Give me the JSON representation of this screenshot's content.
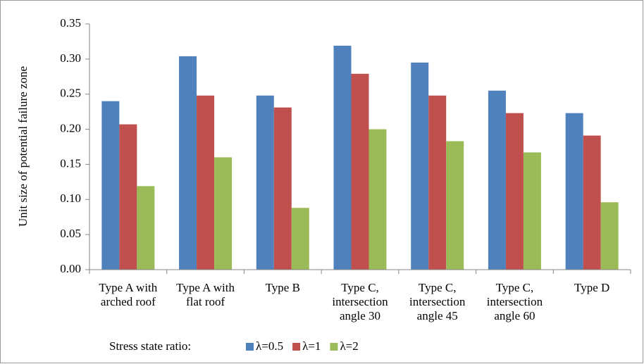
{
  "chart_data": {
    "type": "bar",
    "y_label": "Unit size of potential failure zone",
    "categories": [
      [
        "Type A with",
        "arched roof"
      ],
      [
        "Type A with",
        "flat roof"
      ],
      [
        "Type B"
      ],
      [
        "Type C,",
        "intersection",
        "angle 30"
      ],
      [
        "Type C,",
        "intersection",
        "angle 45"
      ],
      [
        "Type C,",
        "intersection",
        "angle 60"
      ],
      [
        "Type D"
      ]
    ],
    "series": [
      {
        "name": "λ=0.5",
        "color": "#4f81bd",
        "values": [
          0.24,
          0.304,
          0.248,
          0.319,
          0.295,
          0.255,
          0.223
        ]
      },
      {
        "name": "λ=1",
        "color": "#c0504d",
        "values": [
          0.207,
          0.248,
          0.231,
          0.279,
          0.248,
          0.223,
          0.191
        ]
      },
      {
        "name": "λ=2",
        "color": "#9bbb59",
        "values": [
          0.119,
          0.16,
          0.088,
          0.2,
          0.183,
          0.167,
          0.096
        ]
      }
    ],
    "legend_title": "Stress state ratio:",
    "ylim": [
      0,
      0.35
    ],
    "yticks": [
      {
        "value": 0,
        "label": "0.00"
      },
      0.05,
      {
        "value": 0.1,
        "label": "0.10"
      },
      0.15,
      {
        "value": 0.2,
        "label": "0.20"
      },
      0.25,
      {
        "value": 0.3,
        "label": "0.30"
      },
      0.35
    ],
    "legend": "bottom"
  }
}
